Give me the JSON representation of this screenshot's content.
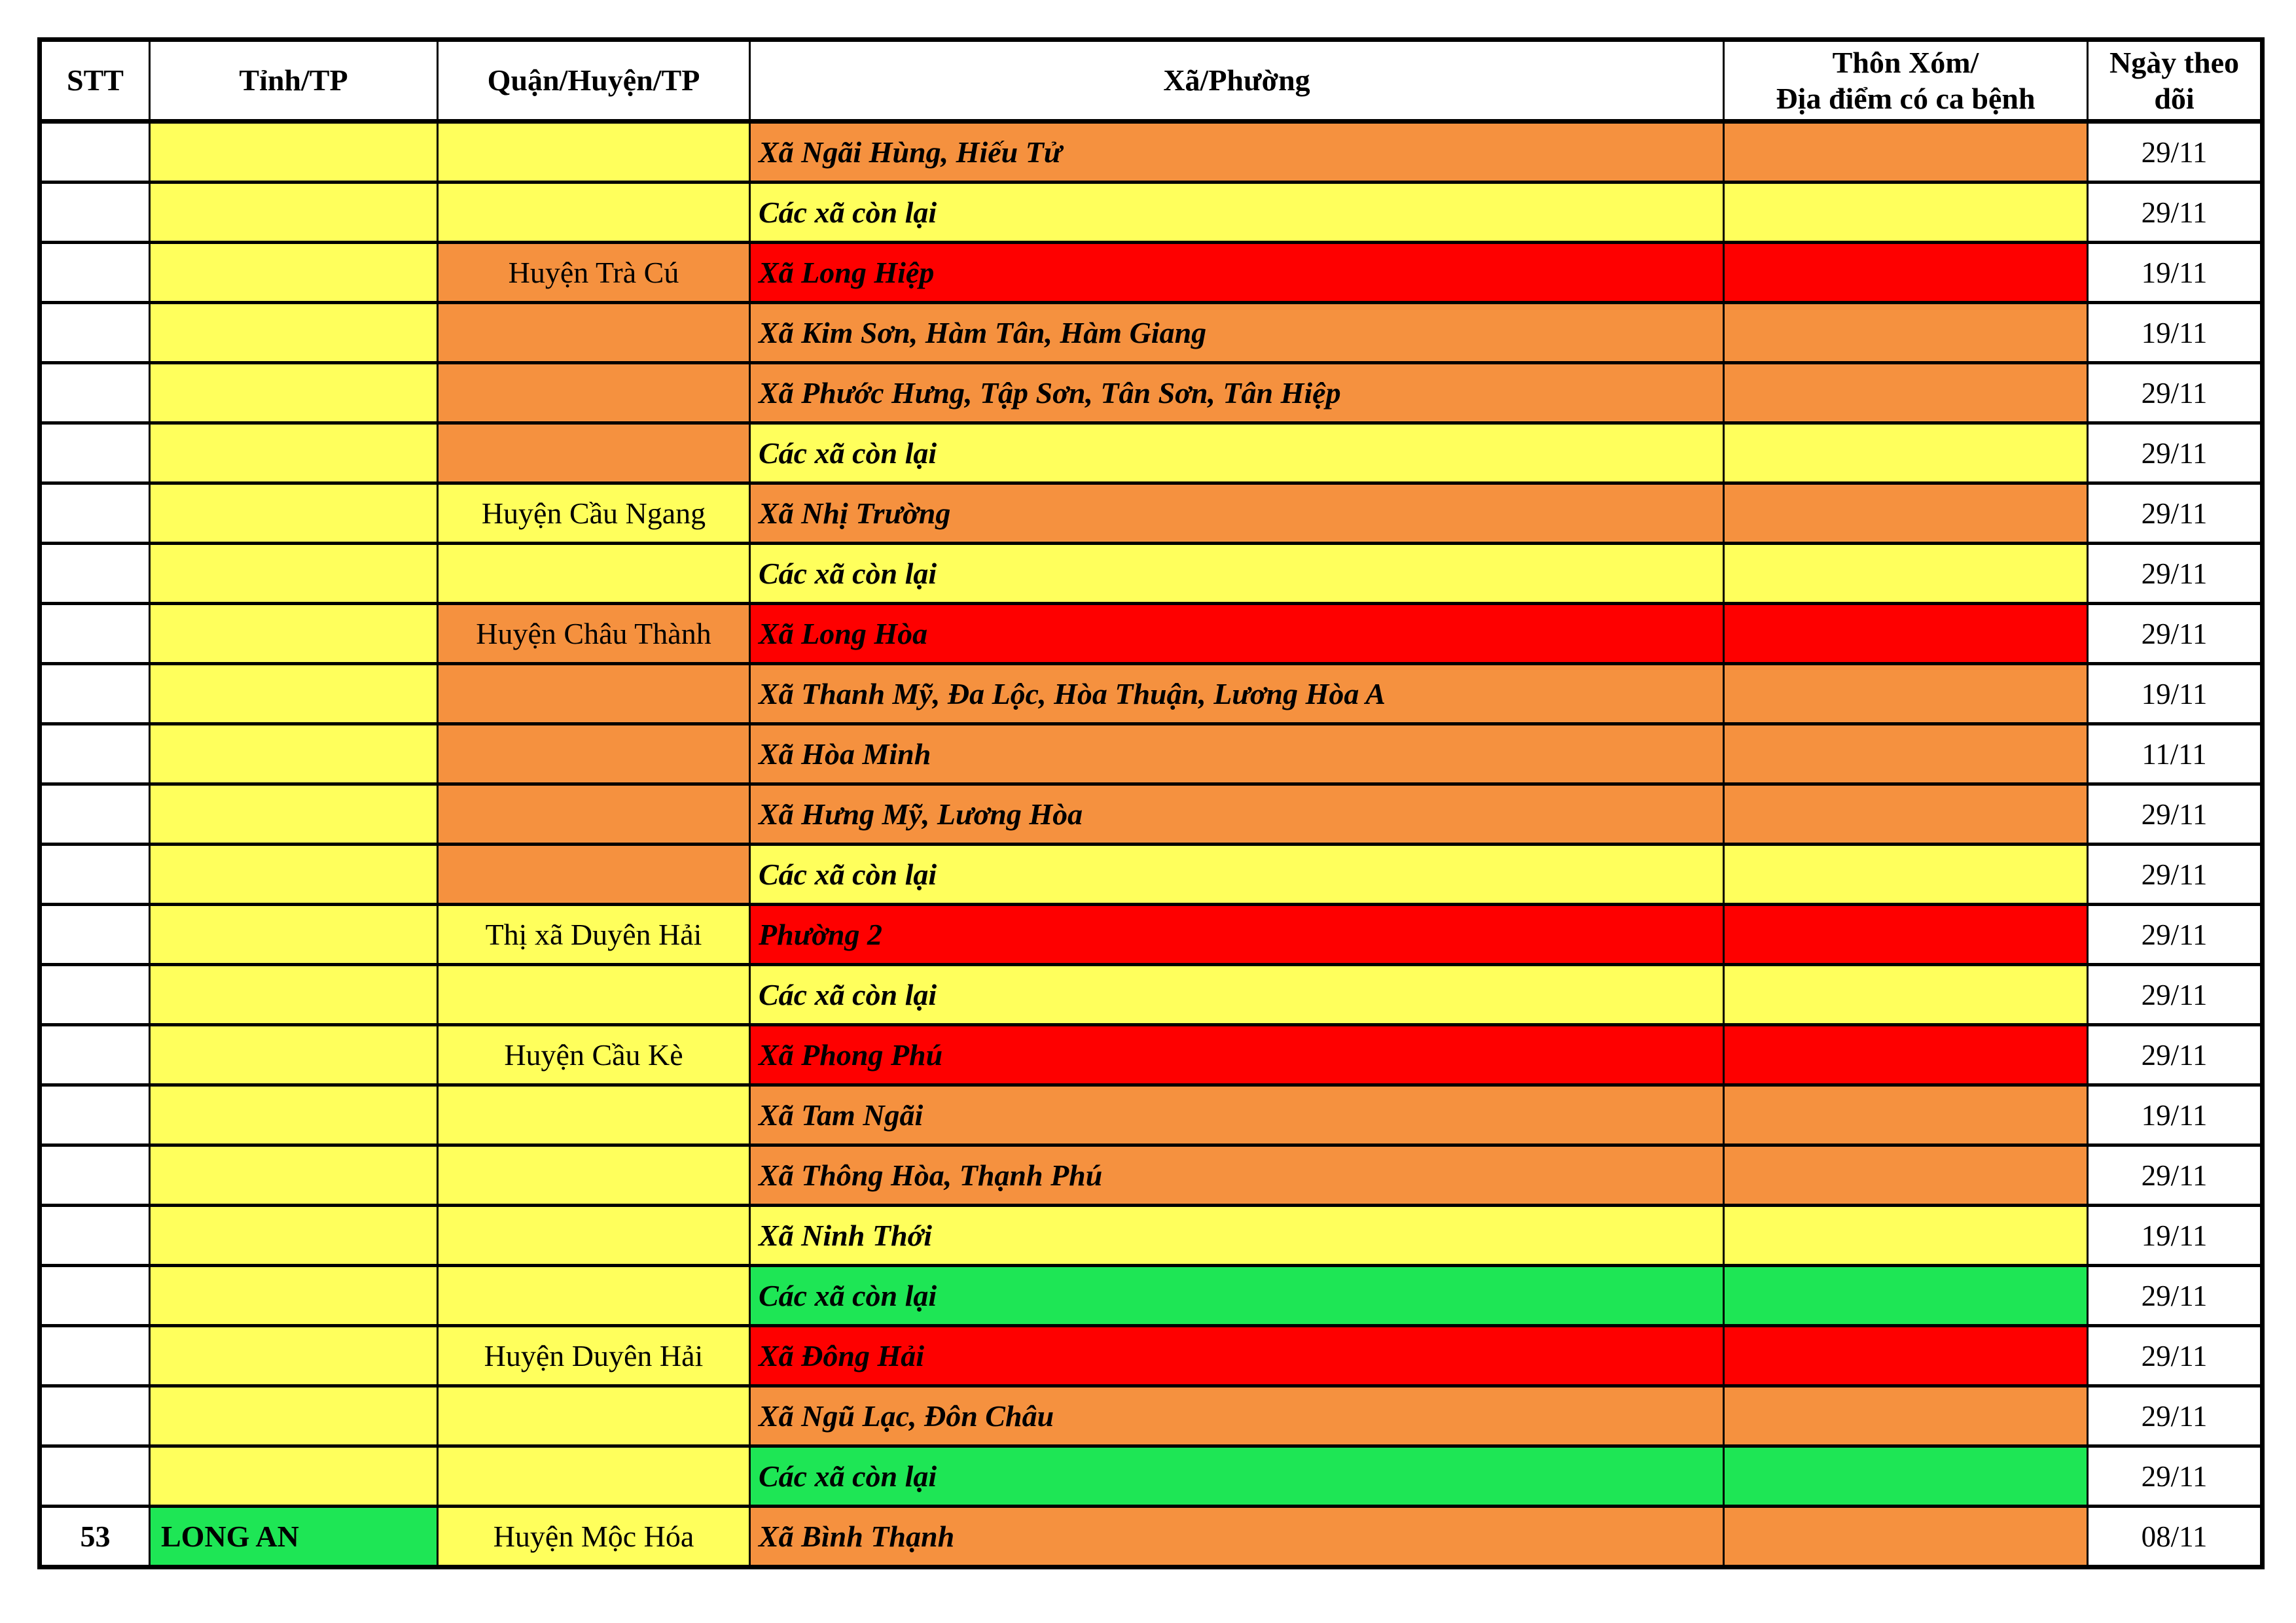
{
  "colors": {
    "yellow": "#FFFF5C",
    "orange": "#F5913F",
    "red": "#FE0000",
    "green": "#1EE655",
    "white": "#FFFFFF",
    "border": "#000000"
  },
  "table": {
    "header": {
      "stt": "STT",
      "province": "Tỉnh/TP",
      "district": "Quận/Huyện/TP",
      "commune": "Xã/Phường",
      "hamlet_line1": "Thôn Xóm/",
      "hamlet_line2": "Địa điểm có ca bệnh",
      "date": "Ngày theo dõi"
    },
    "rows": [
      {
        "stt": "",
        "stt_bg": "white",
        "province": "",
        "province_bg": "yellow",
        "district": "",
        "district_bg": "yellow",
        "commune": "Xã Ngãi Hùng, Hiếu Tử",
        "commune_bg": "orange",
        "hamlet": "",
        "hamlet_bg": "orange",
        "date": "29/11",
        "date_bg": "white"
      },
      {
        "stt": "",
        "stt_bg": "white",
        "province": "",
        "province_bg": "yellow",
        "district": "",
        "district_bg": "yellow",
        "commune": "Các xã còn lại",
        "commune_bg": "yellow",
        "hamlet": "",
        "hamlet_bg": "yellow",
        "date": "29/11",
        "date_bg": "white"
      },
      {
        "stt": "",
        "stt_bg": "white",
        "province": "",
        "province_bg": "yellow",
        "district": "Huyện Trà Cú",
        "district_bg": "orange",
        "commune": "Xã Long Hiệp",
        "commune_bg": "red",
        "hamlet": "",
        "hamlet_bg": "red",
        "date": "19/11",
        "date_bg": "white"
      },
      {
        "stt": "",
        "stt_bg": "white",
        "province": "",
        "province_bg": "yellow",
        "district": "",
        "district_bg": "orange",
        "commune": "Xã Kim Sơn, Hàm Tân, Hàm Giang",
        "commune_bg": "orange",
        "hamlet": "",
        "hamlet_bg": "orange",
        "date": "19/11",
        "date_bg": "white"
      },
      {
        "stt": "",
        "stt_bg": "white",
        "province": "",
        "province_bg": "yellow",
        "district": "",
        "district_bg": "orange",
        "commune": "Xã Phước Hưng, Tập Sơn, Tân Sơn, Tân Hiệp",
        "commune_bg": "orange",
        "hamlet": "",
        "hamlet_bg": "orange",
        "date": "29/11",
        "date_bg": "white"
      },
      {
        "stt": "",
        "stt_bg": "white",
        "province": "",
        "province_bg": "yellow",
        "district": "",
        "district_bg": "orange",
        "commune": "Các xã còn lại",
        "commune_bg": "yellow",
        "hamlet": "",
        "hamlet_bg": "yellow",
        "date": "29/11",
        "date_bg": "white"
      },
      {
        "stt": "",
        "stt_bg": "white",
        "province": "",
        "province_bg": "yellow",
        "district": "Huyện Cầu Ngang",
        "district_bg": "yellow",
        "commune": "Xã Nhị Trường",
        "commune_bg": "orange",
        "hamlet": "",
        "hamlet_bg": "orange",
        "date": "29/11",
        "date_bg": "white"
      },
      {
        "stt": "",
        "stt_bg": "white",
        "province": "",
        "province_bg": "yellow",
        "district": "",
        "district_bg": "yellow",
        "commune": "Các xã còn lại",
        "commune_bg": "yellow",
        "hamlet": "",
        "hamlet_bg": "yellow",
        "date": "29/11",
        "date_bg": "white"
      },
      {
        "stt": "",
        "stt_bg": "white",
        "province": "",
        "province_bg": "yellow",
        "district": "Huyện Châu Thành",
        "district_bg": "orange",
        "commune": "Xã Long Hòa",
        "commune_bg": "red",
        "hamlet": "",
        "hamlet_bg": "red",
        "date": "29/11",
        "date_bg": "white"
      },
      {
        "stt": "",
        "stt_bg": "white",
        "province": "",
        "province_bg": "yellow",
        "district": "",
        "district_bg": "orange",
        "commune": "Xã Thanh Mỹ, Đa Lộc, Hòa Thuận, Lương Hòa A",
        "commune_bg": "orange",
        "hamlet": "",
        "hamlet_bg": "orange",
        "date": "19/11",
        "date_bg": "white"
      },
      {
        "stt": "",
        "stt_bg": "white",
        "province": "",
        "province_bg": "yellow",
        "district": "",
        "district_bg": "orange",
        "commune": "Xã Hòa Minh",
        "commune_bg": "orange",
        "hamlet": "",
        "hamlet_bg": "orange",
        "date": "11/11",
        "date_bg": "white"
      },
      {
        "stt": "",
        "stt_bg": "white",
        "province": "",
        "province_bg": "yellow",
        "district": "",
        "district_bg": "orange",
        "commune": "Xã Hưng Mỹ, Lương Hòa",
        "commune_bg": "orange",
        "hamlet": "",
        "hamlet_bg": "orange",
        "date": "29/11",
        "date_bg": "white"
      },
      {
        "stt": "",
        "stt_bg": "white",
        "province": "",
        "province_bg": "yellow",
        "district": "",
        "district_bg": "orange",
        "commune": "Các xã còn lại",
        "commune_bg": "yellow",
        "hamlet": "",
        "hamlet_bg": "yellow",
        "date": "29/11",
        "date_bg": "white"
      },
      {
        "stt": "",
        "stt_bg": "white",
        "province": "",
        "province_bg": "yellow",
        "district": "Thị xã Duyên Hải",
        "district_bg": "yellow",
        "commune": "Phường 2",
        "commune_bg": "red",
        "hamlet": "",
        "hamlet_bg": "red",
        "date": "29/11",
        "date_bg": "white"
      },
      {
        "stt": "",
        "stt_bg": "white",
        "province": "",
        "province_bg": "yellow",
        "district": "",
        "district_bg": "yellow",
        "commune": "Các xã còn lại",
        "commune_bg": "yellow",
        "hamlet": "",
        "hamlet_bg": "yellow",
        "date": "29/11",
        "date_bg": "white"
      },
      {
        "stt": "",
        "stt_bg": "white",
        "province": "",
        "province_bg": "yellow",
        "district": "Huyện Cầu Kè",
        "district_bg": "yellow",
        "commune": "Xã Phong Phú",
        "commune_bg": "red",
        "hamlet": "",
        "hamlet_bg": "red",
        "date": "29/11",
        "date_bg": "white"
      },
      {
        "stt": "",
        "stt_bg": "white",
        "province": "",
        "province_bg": "yellow",
        "district": "",
        "district_bg": "yellow",
        "commune": "Xã Tam Ngãi",
        "commune_bg": "orange",
        "hamlet": "",
        "hamlet_bg": "orange",
        "date": "19/11",
        "date_bg": "white"
      },
      {
        "stt": "",
        "stt_bg": "white",
        "province": "",
        "province_bg": "yellow",
        "district": "",
        "district_bg": "yellow",
        "commune": "Xã Thông Hòa, Thạnh Phú",
        "commune_bg": "orange",
        "hamlet": "",
        "hamlet_bg": "orange",
        "date": "29/11",
        "date_bg": "white"
      },
      {
        "stt": "",
        "stt_bg": "white",
        "province": "",
        "province_bg": "yellow",
        "district": "",
        "district_bg": "yellow",
        "commune": "Xã Ninh Thới",
        "commune_bg": "yellow",
        "hamlet": "",
        "hamlet_bg": "yellow",
        "date": "19/11",
        "date_bg": "white"
      },
      {
        "stt": "",
        "stt_bg": "white",
        "province": "",
        "province_bg": "yellow",
        "district": "",
        "district_bg": "yellow",
        "commune": "Các xã còn lại",
        "commune_bg": "green",
        "hamlet": "",
        "hamlet_bg": "green",
        "date": "29/11",
        "date_bg": "white"
      },
      {
        "stt": "",
        "stt_bg": "white",
        "province": "",
        "province_bg": "yellow",
        "district": "Huyện Duyên Hải",
        "district_bg": "yellow",
        "commune": "Xã Đông Hải",
        "commune_bg": "red",
        "hamlet": "",
        "hamlet_bg": "red",
        "date": "29/11",
        "date_bg": "white"
      },
      {
        "stt": "",
        "stt_bg": "white",
        "province": "",
        "province_bg": "yellow",
        "district": "",
        "district_bg": "yellow",
        "commune": "Xã Ngũ Lạc, Đôn Châu",
        "commune_bg": "orange",
        "hamlet": "",
        "hamlet_bg": "orange",
        "date": "29/11",
        "date_bg": "white"
      },
      {
        "stt": "",
        "stt_bg": "white",
        "province": "",
        "province_bg": "yellow",
        "district": "",
        "district_bg": "yellow",
        "commune": "Các xã còn lại",
        "commune_bg": "green",
        "hamlet": "",
        "hamlet_bg": "green",
        "date": "29/11",
        "date_bg": "white"
      },
      {
        "stt": "53",
        "stt_bg": "white",
        "province": "LONG AN",
        "province_bg": "green",
        "district": "Huyện Mộc Hóa",
        "district_bg": "yellow",
        "commune": "Xã Bình Thạnh",
        "commune_bg": "orange",
        "hamlet": "",
        "hamlet_bg": "orange",
        "date": "08/11",
        "date_bg": "white"
      }
    ]
  }
}
